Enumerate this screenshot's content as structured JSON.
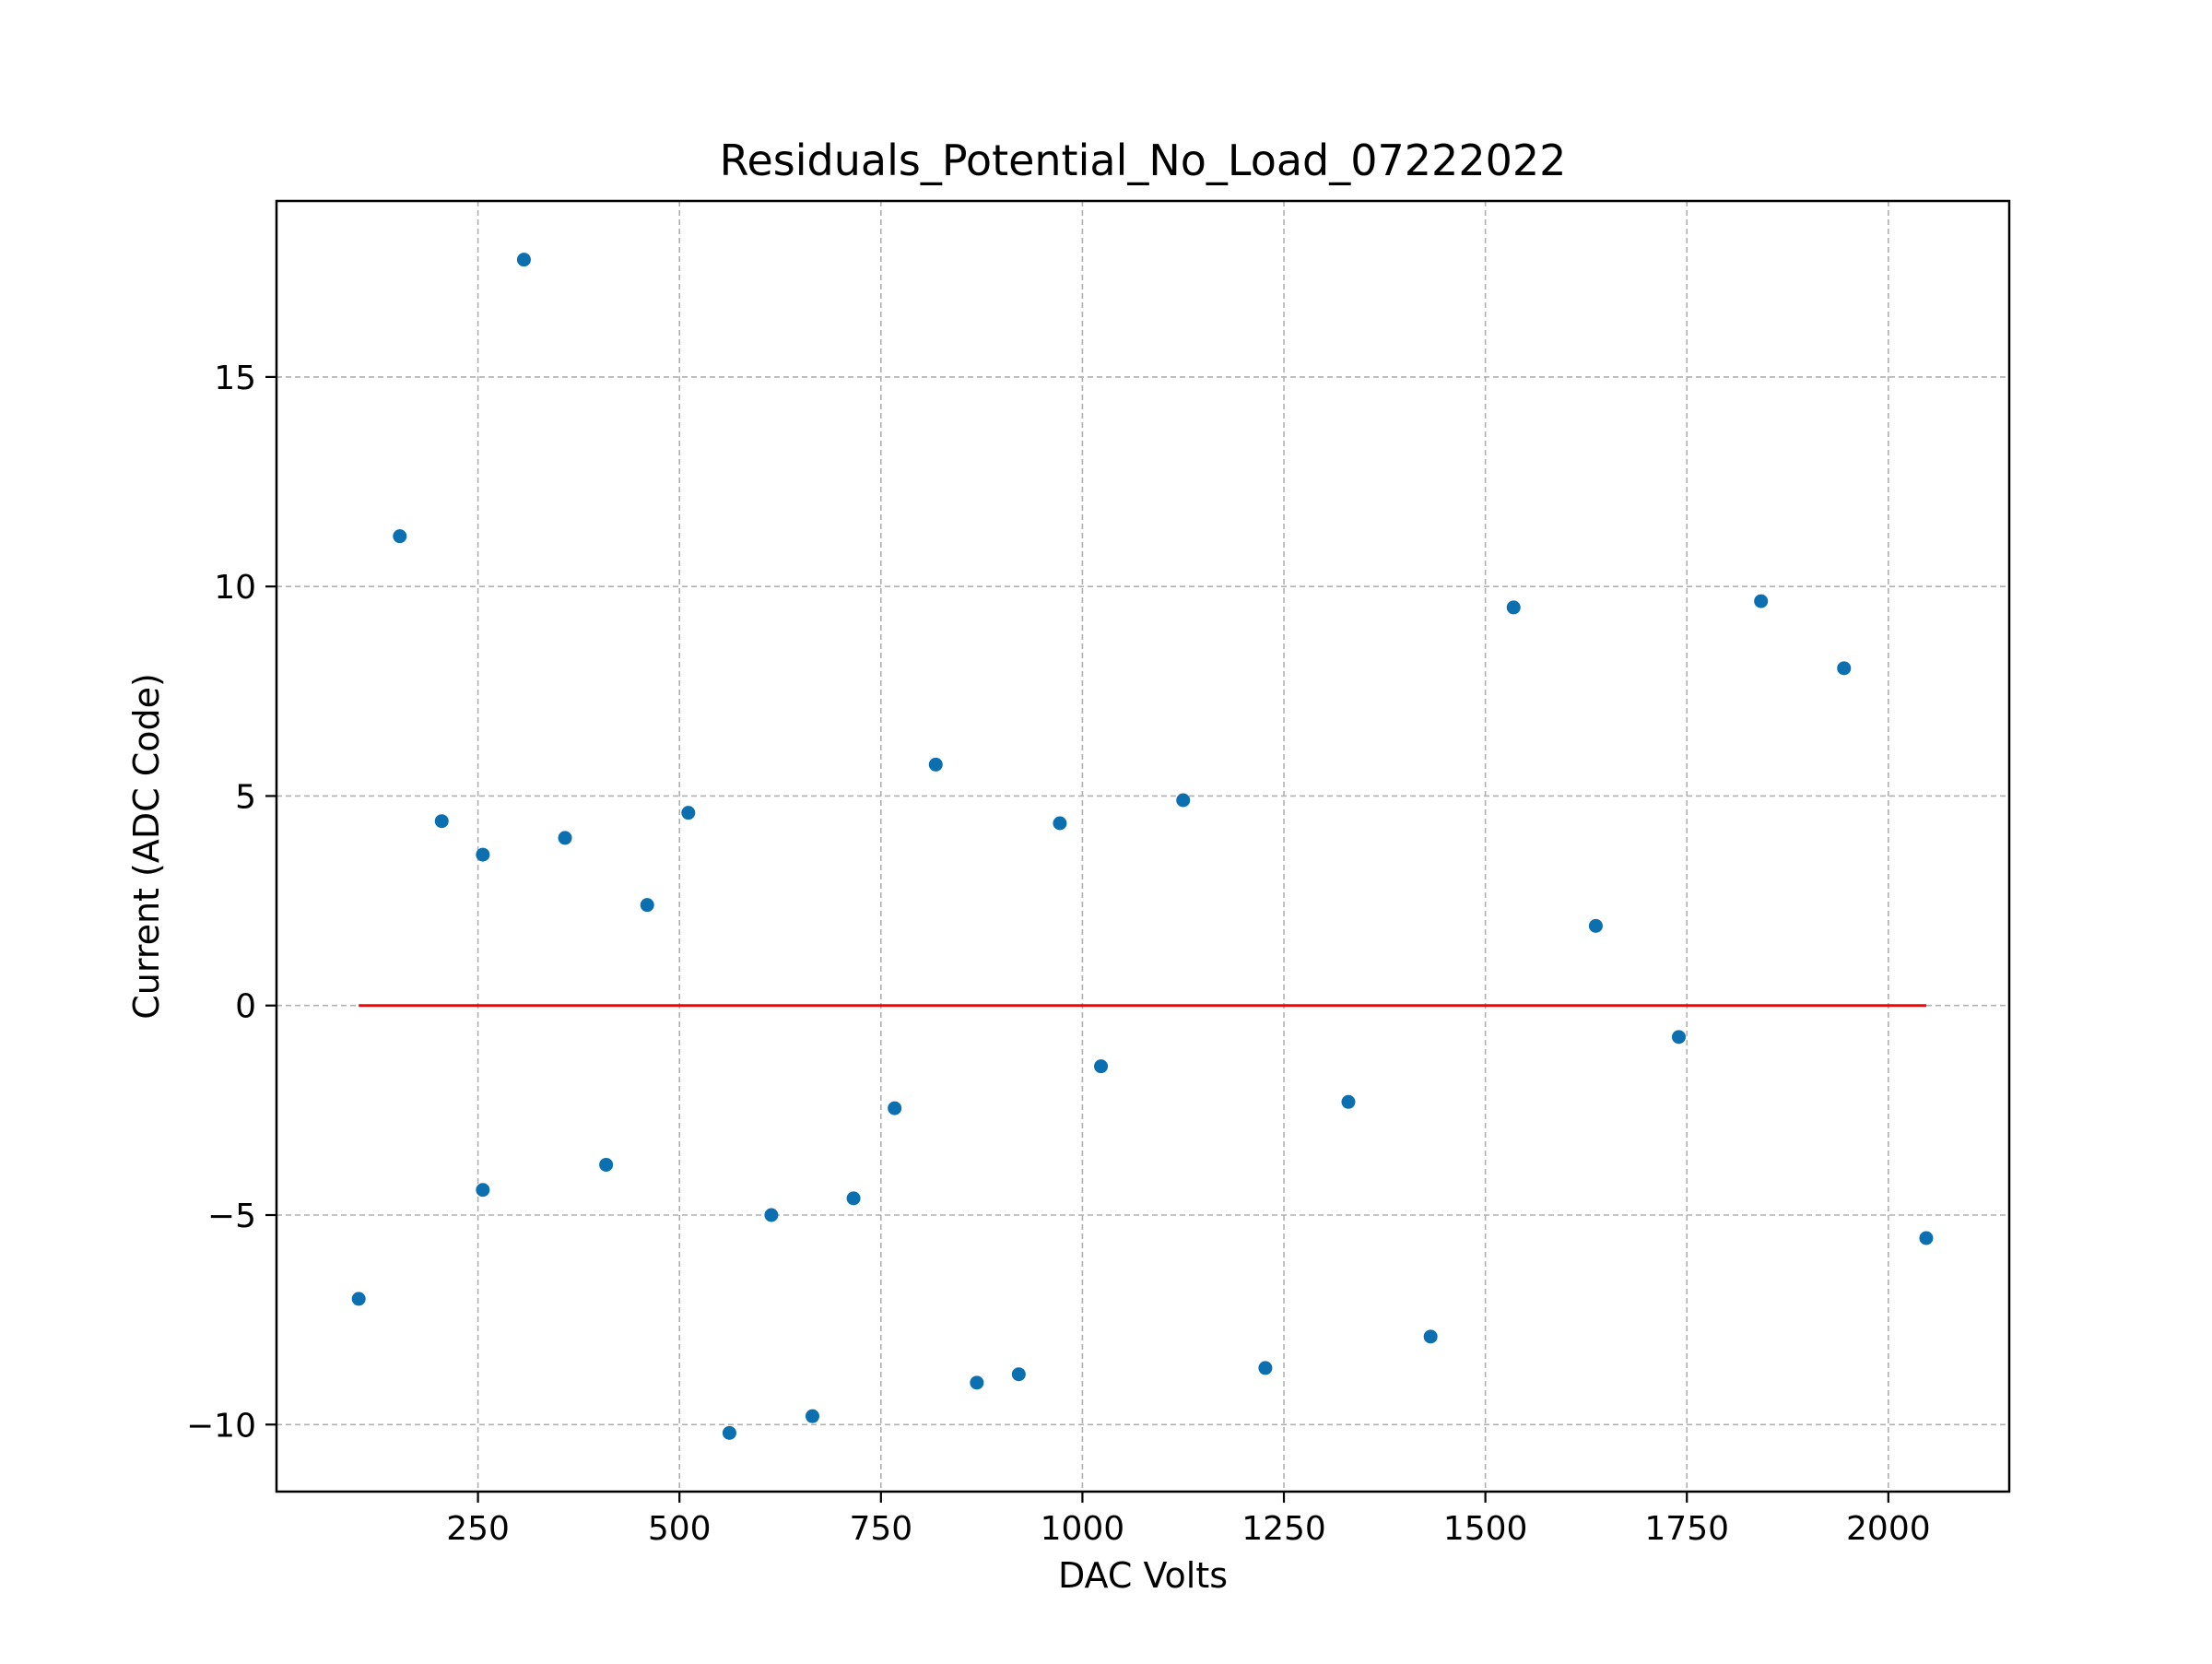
{
  "chart_data": {
    "type": "scatter",
    "title": "Residuals_Potential_No_Load_07222022",
    "xlabel": "DAC Volts",
    "ylabel": "Current (ADC Code)",
    "xlim": [
      0,
      2150
    ],
    "ylim": [
      -11.6,
      19.2
    ],
    "xticks": [
      250,
      500,
      750,
      1000,
      1250,
      1500,
      1750,
      2000
    ],
    "xtick_labels": [
      "250",
      "500",
      "750",
      "1000",
      "1250",
      "1500",
      "1750",
      "2000"
    ],
    "yticks": [
      -10,
      -5,
      0,
      5,
      10,
      15
    ],
    "ytick_labels": [
      "−10",
      "−5",
      "0",
      "5",
      "10",
      "15"
    ],
    "grid": true,
    "series": [
      {
        "color": "#0b6fb0",
        "x": [
          102,
          153,
          205,
          256,
          256,
          307,
          358,
          409,
          460,
          511,
          562,
          614,
          665,
          716,
          767,
          818,
          869,
          921,
          972,
          1023,
          1125,
          1227,
          1330,
          1432,
          1535,
          1637,
          1740,
          1842,
          1945,
          2047
        ],
        "y": [
          -7.0,
          11.2,
          4.4,
          3.6,
          -4.4,
          17.8,
          4.0,
          -3.8,
          2.4,
          4.6,
          -10.2,
          -5.0,
          -9.8,
          -4.6,
          -2.45,
          5.75,
          -9.0,
          -8.8,
          4.35,
          -1.45,
          4.9,
          -8.65,
          -2.3,
          -7.9,
          9.5,
          1.9,
          -0.75,
          9.65,
          8.05,
          -5.55
        ]
      }
    ],
    "reference_line": {
      "y": 0,
      "x": [
        102,
        2047
      ],
      "color": "#ff0000"
    }
  }
}
